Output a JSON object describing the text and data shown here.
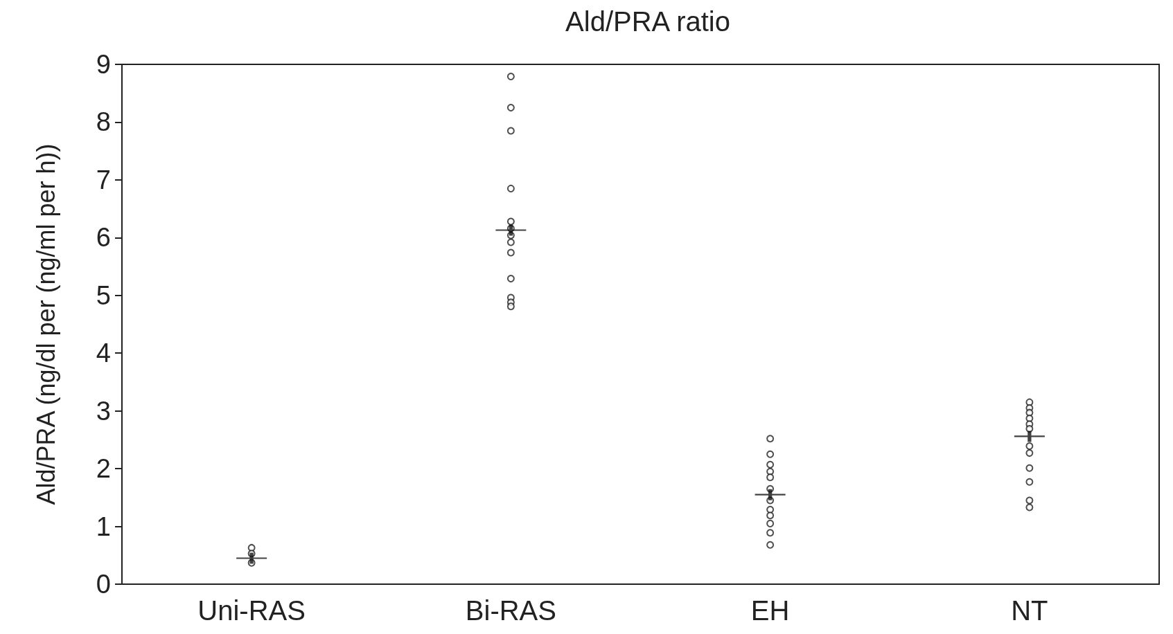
{
  "chart_data": {
    "type": "scatter",
    "title": "Ald/PRA ratio",
    "ylabel": "Ald/PRA (ng/dl per (ng/ml per h))",
    "categories": [
      "Uni-RAS",
      "Bi-RAS",
      "EH",
      "NT"
    ],
    "ylim": [
      0,
      9
    ],
    "yticks": [
      0,
      1,
      2,
      3,
      4,
      5,
      6,
      7,
      8,
      9
    ],
    "grid": false,
    "series": [
      {
        "color": "#222222",
        "marker": "circle",
        "x": [
          "Uni-RAS",
          "Uni-RAS",
          "Uni-RAS",
          "Bi-RAS",
          "Bi-RAS",
          "Bi-RAS",
          "Bi-RAS",
          "Bi-RAS",
          "Bi-RAS",
          "Bi-RAS",
          "Bi-RAS",
          "Bi-RAS",
          "Bi-RAS",
          "Bi-RAS",
          "Bi-RAS",
          "Bi-RAS",
          "EH",
          "EH",
          "EH",
          "EH",
          "EH",
          "EH",
          "EH",
          "EH",
          "EH",
          "EH",
          "EH",
          "EH",
          "NT",
          "NT",
          "NT",
          "NT",
          "NT",
          "NT",
          "NT",
          "NT",
          "NT",
          "NT",
          "NT",
          "NT"
        ],
        "values": [
          0.63,
          0.53,
          0.37,
          8.79,
          8.25,
          7.85,
          6.85,
          6.28,
          6.16,
          6.04,
          5.92,
          5.74,
          5.29,
          4.96,
          4.88,
          4.81,
          2.52,
          2.25,
          2.07,
          1.95,
          1.85,
          1.65,
          1.45,
          1.29,
          1.19,
          1.05,
          0.89,
          0.68,
          3.15,
          3.05,
          2.97,
          2.87,
          2.77,
          2.69,
          2.39,
          2.27,
          2.01,
          1.77,
          1.45,
          1.33
        ]
      },
      {
        "color": "#111111",
        "marker": "cross",
        "x": [
          "Uni-RAS",
          "Bi-RAS",
          "EH",
          "NT"
        ],
        "values": [
          0.45,
          6.13,
          1.55,
          2.56
        ]
      }
    ]
  }
}
